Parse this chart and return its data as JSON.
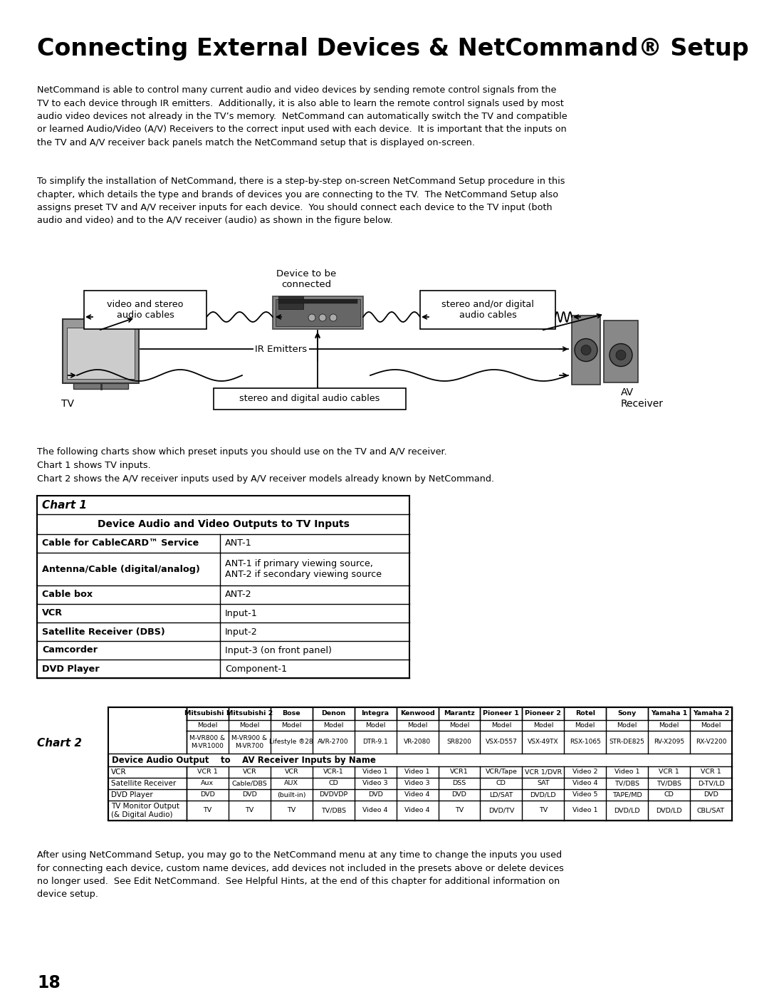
{
  "title": "Connecting External Devices & NetCommand® Setup",
  "para1": "NetCommand is able to control many current audio and video devices by sending remote control signals from the\nTV to each device through IR emitters.  Additionally, it is also able to learn the remote control signals used by most\naudio video devices not already in the TV’s memory.  NetCommand can automatically switch the TV and compatible\nor learned Audio/Video (A/V) Receivers to the correct input used with each device.  It is important that the inputs on\nthe TV and A/V receiver back panels match the NetCommand setup that is displayed on-screen.",
  "para2": "To simplify the installation of NetCommand, there is a step-by-step on-screen NetCommand Setup procedure in this\nchapter, which details the type and brands of devices you are connecting to the TV.  The NetCommand Setup also\nassigns preset TV and A/V receiver inputs for each device.  You should connect each device to the TV input (both\naudio and video) and to the A/V receiver (audio) as shown in the figure below.",
  "diagram_labels": {
    "video_stereo": "video and stereo\naudio cables",
    "device_to_be": "Device to be\nconnected",
    "stereo_digital": "stereo and/or digital\naudio cables",
    "ir_emitters": "IR Emitters",
    "tv_label": "TV",
    "av_receiver": "AV\nReceiver",
    "stereo_digital_bottom": "stereo and digital audio cables"
  },
  "chart1_title": "Chart 1",
  "chart1_header": "Device Audio and Video Outputs to TV Inputs",
  "chart1_rows": [
    [
      "Cable for CableCARD™ Service",
      "ANT-1"
    ],
    [
      "Antenna/Cable (digital/analog)",
      "ANT-1 if primary viewing source,\nANT-2 if secondary viewing source"
    ],
    [
      "Cable box",
      "ANT-2"
    ],
    [
      "VCR",
      "Input-1"
    ],
    [
      "Satellite Receiver (DBS)",
      "Input-2"
    ],
    [
      "Camcorder",
      "Input-3 (on front panel)"
    ],
    [
      "DVD Player",
      "Component-1"
    ]
  ],
  "chart2_title": "Chart 2",
  "chart2_brands": [
    "Mitsubishi 1",
    "Mitsubishi 2",
    "Bose",
    "Denon",
    "Integra",
    "Kenwood",
    "Marantz",
    "Pioneer 1",
    "Pioneer 2",
    "Rotel",
    "Sony",
    "Yamaha 1",
    "Yamaha 2"
  ],
  "chart2_models": [
    "M-VR800 &\nM-VR1000",
    "M-VR900 &\nM-VR700",
    "Lifestyle ®28",
    "AVR-2700",
    "DTR-9.1",
    "VR-2080",
    "SR8200",
    "VSX-D557",
    "VSX-49TX",
    "RSX-1065",
    "STR-DE825",
    "RV-X2095",
    "RX-V2200"
  ],
  "chart2_data": [
    [
      "VCR",
      "VCR 1",
      "VCR",
      "VCR",
      "VCR-1",
      "Video 1",
      "Video 1",
      "VCR1",
      "VCR/Tape",
      "VCR 1/DVR",
      "Video 2",
      "Video 1",
      "VCR 1",
      "VCR 1"
    ],
    [
      "Satellite Receiver",
      "Aux",
      "Cable/DBS",
      "AUX",
      "CD",
      "Video 3",
      "Video 3",
      "DSS",
      "CD",
      "SAT",
      "Video 4",
      "TV/DBS",
      "TV/DBS",
      "D-TV/LD"
    ],
    [
      "DVD Player",
      "DVD",
      "DVD",
      "(built-in)",
      "DVDVDP",
      "DVD",
      "Video 4",
      "DVD",
      "LD/SAT",
      "DVD/LD",
      "Video 5",
      "TAPE/MD",
      "CD",
      "DVD"
    ],
    [
      "TV Monitor Output\n(& Digital Audio)",
      "TV",
      "TV",
      "TV",
      "TV/DBS",
      "Video 4",
      "Video 4",
      "TV",
      "DVD/TV",
      "TV",
      "Video 1",
      "DVD/LD",
      "DVD/LD",
      "CBL/SAT"
    ]
  ],
  "para3": "After using NetCommand Setup, you may go to the NetCommand menu at any time to change the inputs you used\nfor connecting each device, custom name devices, add devices not included in the presets above or delete devices\nno longer used.  See Edit NetCommand.  See Helpful Hints, at the end of this chapter for additional information on\ndevice setup.",
  "page_number": "18",
  "bg_color": "#ffffff",
  "text_color": "#000000"
}
